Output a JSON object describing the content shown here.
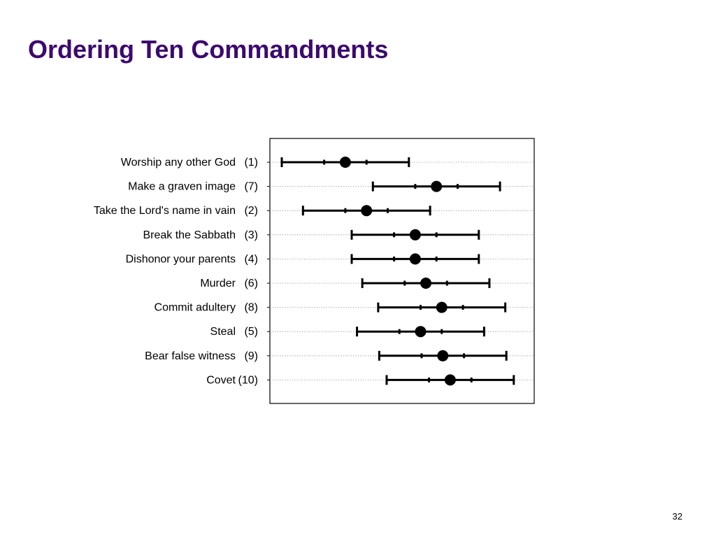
{
  "slide": {
    "title": "Ordering Ten Commandments",
    "page_number": "32"
  },
  "colors": {
    "title": "#3b0a6e",
    "marks": "#000000",
    "gridline": "#999999"
  },
  "chart_data": {
    "type": "scatter",
    "title": "",
    "xlabel": "",
    "ylabel": "",
    "grid": "horizontal dotted",
    "legend": "none",
    "xlim": [
      0,
      12
    ],
    "rows": [
      {
        "label": "Worship any other God",
        "rank": "(1)",
        "center": 3.5,
        "inner": [
          2.5,
          4.5
        ],
        "outer": [
          0.5,
          6.5
        ]
      },
      {
        "label": "Make a graven image",
        "rank": "(7)",
        "center": 7.8,
        "inner": [
          6.8,
          8.8
        ],
        "outer": [
          4.8,
          10.8
        ]
      },
      {
        "label": "Take the Lord's name in vain",
        "rank": "(2)",
        "center": 4.5,
        "inner": [
          3.5,
          5.5
        ],
        "outer": [
          1.5,
          7.5
        ]
      },
      {
        "label": "Break the Sabbath",
        "rank": "(3)",
        "center": 6.8,
        "inner": [
          5.8,
          7.8
        ],
        "outer": [
          3.8,
          9.8
        ]
      },
      {
        "label": "Dishonor your parents",
        "rank": "(4)",
        "center": 6.8,
        "inner": [
          5.8,
          7.8
        ],
        "outer": [
          3.8,
          9.8
        ]
      },
      {
        "label": "Murder",
        "rank": "(6)",
        "center": 7.3,
        "inner": [
          6.3,
          8.3
        ],
        "outer": [
          4.3,
          10.3
        ]
      },
      {
        "label": "Commit adultery",
        "rank": "(8)",
        "center": 8.05,
        "inner": [
          7.05,
          9.05
        ],
        "outer": [
          5.05,
          11.05
        ]
      },
      {
        "label": "Steal",
        "rank": "(5)",
        "center": 7.05,
        "inner": [
          6.05,
          8.05
        ],
        "outer": [
          4.05,
          10.05
        ]
      },
      {
        "label": "Bear false witness",
        "rank": "(9)",
        "center": 8.1,
        "inner": [
          7.1,
          9.1
        ],
        "outer": [
          5.1,
          11.1
        ]
      },
      {
        "label": "Covet",
        "rank": "(10)",
        "center": 8.45,
        "inner": [
          7.45,
          9.45
        ],
        "outer": [
          5.45,
          11.45
        ]
      }
    ]
  }
}
